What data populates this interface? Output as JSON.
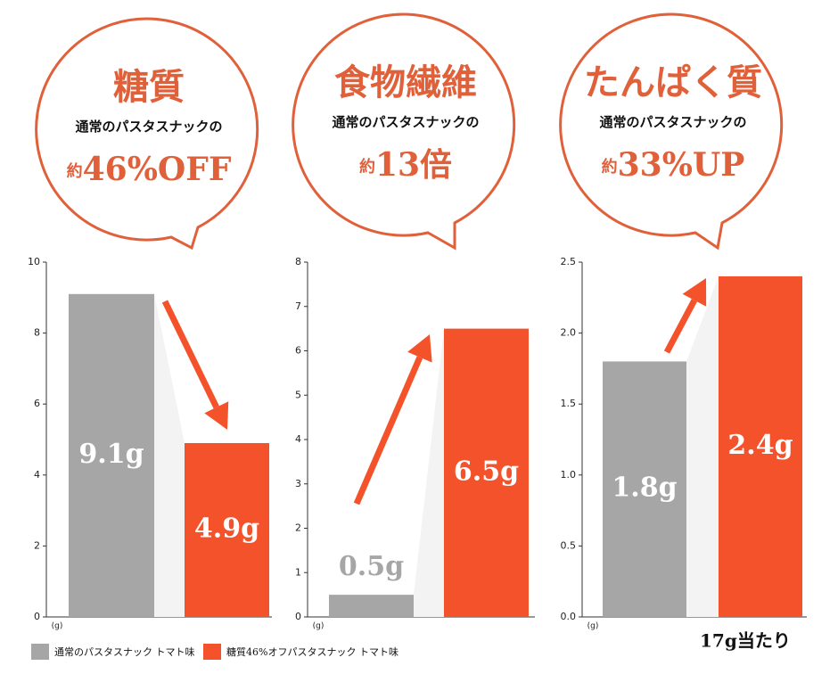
{
  "chart_data": [
    {
      "type": "bar",
      "title": "糖質",
      "subtitle": "通常のパスタスナックの",
      "callout_prefix": "約",
      "callout": "46%OFF",
      "values": [
        9.1,
        4.9
      ],
      "value_labels": [
        "9.1g",
        "4.9g"
      ],
      "y_label": "(g)",
      "ylim": [
        0,
        10
      ],
      "yticks": [
        0,
        2,
        4,
        6,
        8,
        10
      ]
    },
    {
      "type": "bar",
      "title": "食物繊維",
      "subtitle": "通常のパスタスナックの",
      "callout_prefix": "約",
      "callout": "13倍",
      "values": [
        0.5,
        6.5
      ],
      "value_labels": [
        "0.5g",
        "6.5g"
      ],
      "y_label": "(g)",
      "ylim": [
        0,
        8
      ],
      "yticks": [
        0,
        1,
        2,
        3,
        4,
        5,
        6,
        7,
        8
      ]
    },
    {
      "type": "bar",
      "title": "たんぱく質",
      "subtitle": "通常のパスタスナックの",
      "callout_prefix": "約",
      "callout": "33%UP",
      "values": [
        1.8,
        2.4
      ],
      "value_labels": [
        "1.8g",
        "2.4g"
      ],
      "y_label": "(g)",
      "ylim": [
        0,
        2.5
      ],
      "yticks": [
        {
          "value": 0,
          "label": "0.0"
        },
        0.5,
        {
          "value": 1,
          "label": "1.0"
        },
        1.5,
        {
          "value": 2,
          "label": "2.0"
        },
        2.5
      ]
    }
  ],
  "legend": [
    {
      "name": "通常のパスタスナック トマト味",
      "color": "#a6a6a6"
    },
    {
      "name": "糖質46%オフパスタスナック トマト味",
      "color": "#f4522b"
    }
  ],
  "footnote": "17g当たり"
}
